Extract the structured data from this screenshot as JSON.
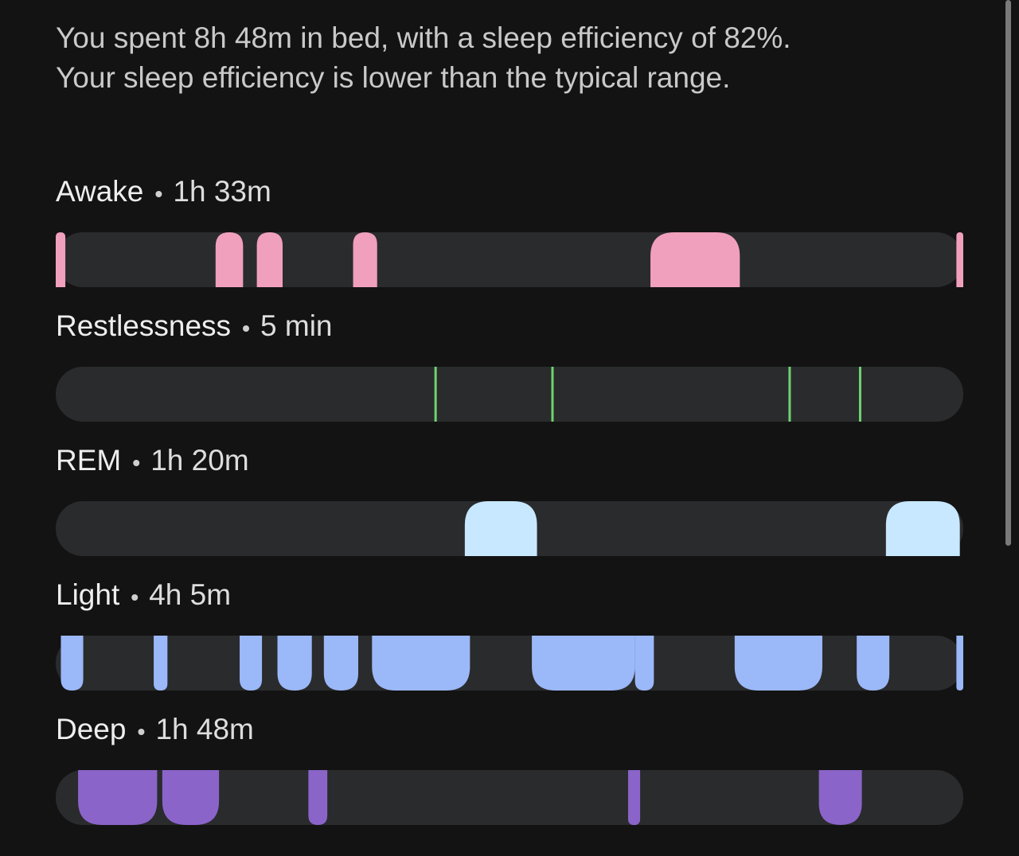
{
  "summary": [
    "You spent 8h 48m in bed, with a sleep efficiency of 82%.",
    "Your sleep efficiency is lower than the typical range."
  ],
  "chart_data": {
    "type": "sleep-stages",
    "xlim": [
      0,
      528
    ],
    "stages": [
      {
        "name": "Awake",
        "duration": "1h 33m",
        "color": "#f0a0bc",
        "round": "top",
        "segments": [
          [
            0,
            5.6
          ],
          [
            93,
            109
          ],
          [
            117,
            132
          ],
          [
            173,
            187
          ],
          [
            346,
            398
          ],
          [
            524,
            528
          ]
        ]
      },
      {
        "name": "Restlessness",
        "duration": "5 min",
        "color": "#6fd36f",
        "events": [
          221,
          289,
          427,
          468
        ]
      },
      {
        "name": "REM",
        "duration": "1h 20m",
        "color": "#c8e8ff",
        "round": "top",
        "segments": [
          [
            238,
            280
          ],
          [
            483,
            526
          ]
        ]
      },
      {
        "name": "Light",
        "duration": "4h 5m",
        "color": "#9bb8f8",
        "round": "bottom",
        "segments": [
          [
            3,
            16
          ],
          [
            57,
            65
          ],
          [
            107,
            120
          ],
          [
            129,
            149
          ],
          [
            156,
            176
          ],
          [
            184,
            241
          ],
          [
            277,
            337
          ],
          [
            337,
            348
          ],
          [
            395,
            446
          ],
          [
            466,
            485
          ],
          [
            524,
            528
          ]
        ]
      },
      {
        "name": "Deep",
        "duration": "1h 48m",
        "color": "#8b64c9",
        "round": "bottom",
        "segments": [
          [
            13,
            59
          ],
          [
            62,
            95
          ],
          [
            147,
            158
          ],
          [
            333,
            340
          ],
          [
            444,
            469
          ]
        ]
      }
    ]
  }
}
